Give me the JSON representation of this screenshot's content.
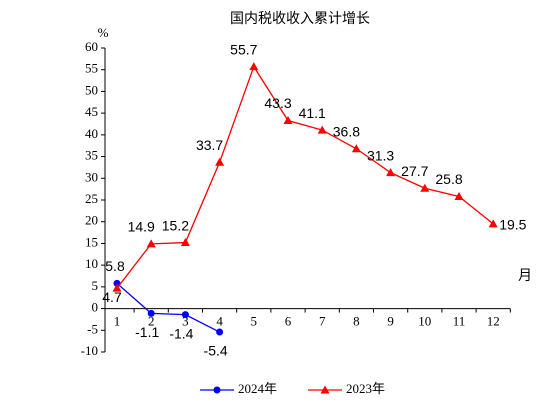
{
  "chart_data": {
    "type": "line",
    "title": "国内税收收入累计增长",
    "y_label": "%",
    "x_label": "月",
    "categories": [
      "1",
      "2",
      "3",
      "4",
      "5",
      "6",
      "7",
      "8",
      "9",
      "10",
      "11",
      "12"
    ],
    "series": [
      {
        "name": "2024年",
        "color": "#0000ff",
        "marker": "circle",
        "values": [
          5.8,
          -1.1,
          -1.4,
          -5.4,
          null,
          null,
          null,
          null,
          null,
          null,
          null,
          null
        ]
      },
      {
        "name": "2023年",
        "color": "#ff0000",
        "marker": "triangle",
        "values": [
          4.7,
          14.9,
          15.2,
          33.7,
          55.7,
          43.3,
          41.1,
          36.8,
          31.3,
          27.7,
          25.8,
          19.5
        ]
      }
    ],
    "ylim": [
      -10,
      60
    ],
    "yticks": [
      -10,
      -5,
      0,
      5,
      10,
      15,
      20,
      25,
      30,
      35,
      40,
      45,
      50,
      55,
      60
    ],
    "grid": false,
    "legend": "bottom"
  }
}
